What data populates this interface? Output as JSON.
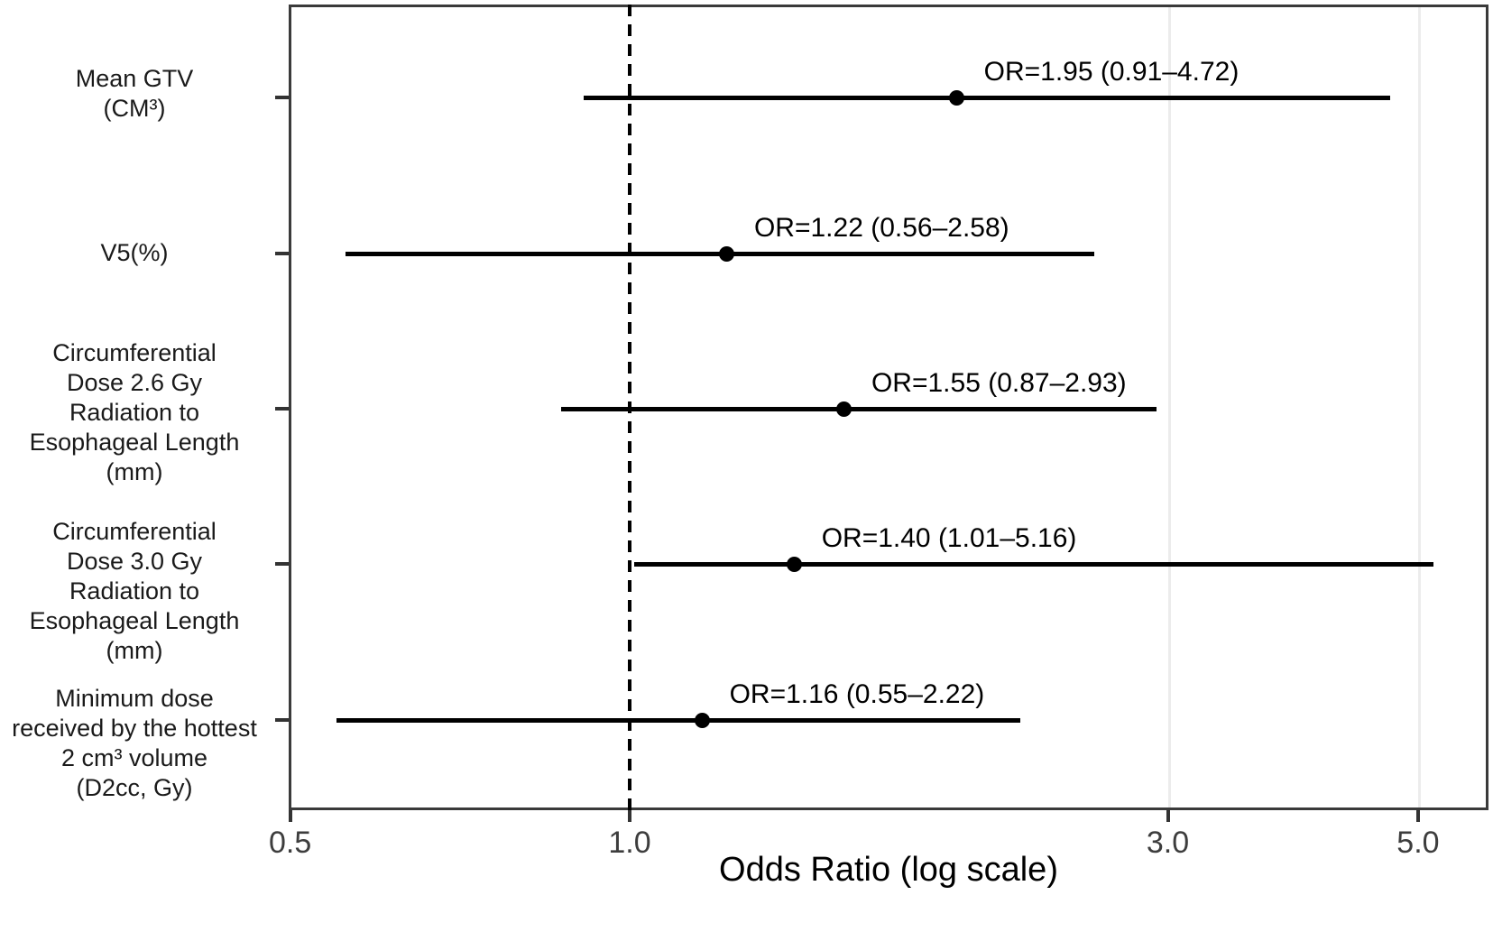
{
  "chart_data": {
    "type": "forest_plot",
    "title": "",
    "xlabel": "Odds Ratio (log scale)",
    "x_scale": "log",
    "x_tick_labels": [
      "0.5",
      "1.0",
      "3.0",
      "5.0"
    ],
    "x_tick_values": [
      0.5,
      1.0,
      3.0,
      5.0
    ],
    "xlim": [
      0.4986,
      5.77
    ],
    "reference_line_x": 1.0,
    "gridline_values": [
      3.0,
      5.0
    ],
    "legend": "none",
    "rows": [
      {
        "label_lines": [
          "Mean GTV",
          "(CM³)"
        ],
        "or": 1.95,
        "ci_low": 0.91,
        "ci_high": 4.72,
        "annotation": "OR=1.95 (0.91–4.72)"
      },
      {
        "label_lines": [
          "V5(%)"
        ],
        "or": 1.22,
        "ci_low": 0.56,
        "ci_high": 2.58,
        "annotation": "OR=1.22 (0.56–2.58)"
      },
      {
        "label_lines": [
          "Circumferential",
          "Dose 2.6 Gy",
          "Radiation to",
          "Esophageal Length",
          "(mm)"
        ],
        "or": 1.55,
        "ci_low": 0.87,
        "ci_high": 2.93,
        "annotation": "OR=1.55 (0.87–2.93)"
      },
      {
        "label_lines": [
          "Circumferential",
          "Dose 3.0 Gy",
          "Radiation to",
          "Esophageal Length",
          "(mm)"
        ],
        "or": 1.4,
        "ci_low": 1.01,
        "ci_high": 5.16,
        "annotation": "OR=1.40 (1.01–5.16)"
      },
      {
        "label_lines": [
          "Minimum dose",
          "received by the hottest",
          "2 cm³ volume",
          "(D2cc, Gy)"
        ],
        "or": 1.16,
        "ci_low": 0.55,
        "ci_high": 2.22,
        "annotation": "OR=1.16 (0.55–2.22)"
      }
    ]
  },
  "colors": {
    "background": "#ffffff",
    "panel_border": "#3a3a3a",
    "gridline": "#ececec",
    "data": "#000000",
    "tick_label": "#3d3d3d",
    "axis_title": "#000000"
  }
}
